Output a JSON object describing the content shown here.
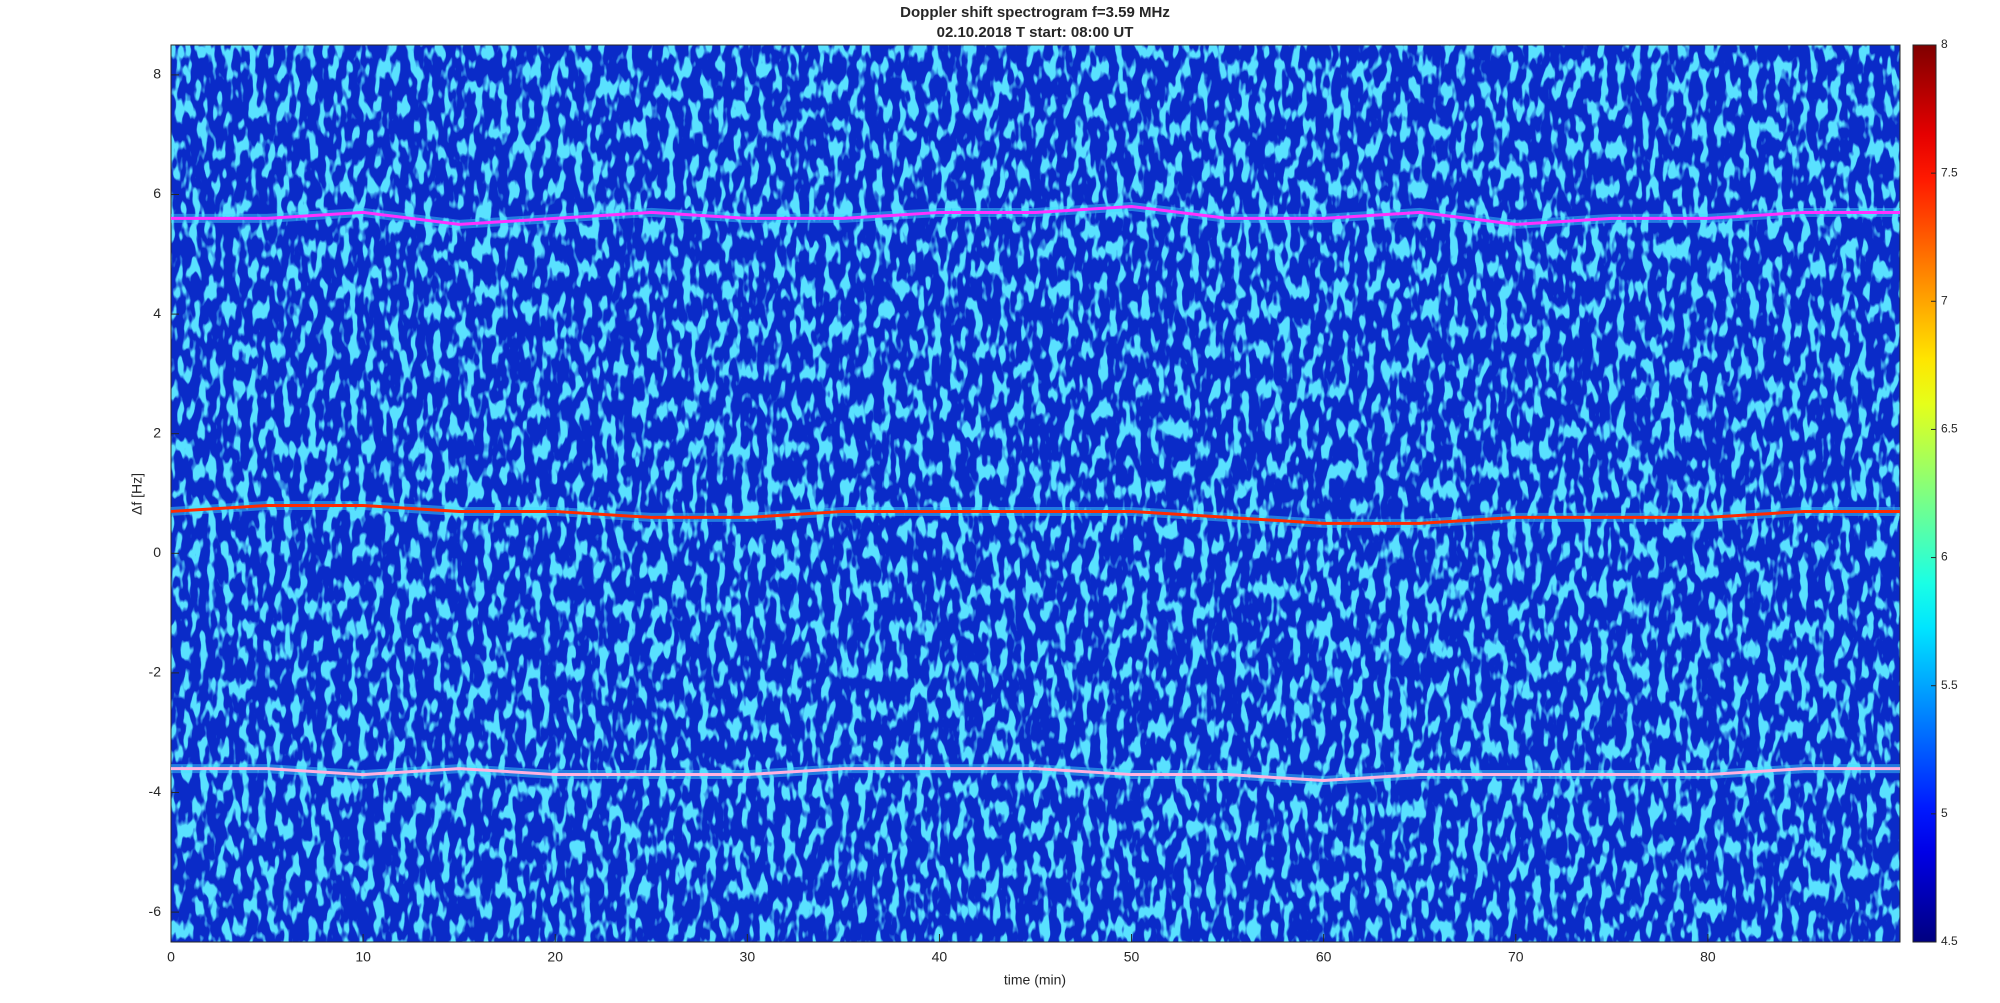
{
  "chart_data": {
    "type": "spectrogram",
    "title": "Doppler shift spectrogram f=3.59 MHz",
    "subtitle": "02.10.2018   T start: 08:00 UT",
    "x_label": "time (min)",
    "y_label": "Δf [Hz]",
    "xlim": [
      0,
      90
    ],
    "xticks": [
      0,
      10,
      20,
      30,
      40,
      50,
      60,
      70,
      80
    ],
    "ylim": [
      -6.5,
      8.5
    ],
    "yticks": [
      -6,
      -4,
      -2,
      0,
      2,
      4,
      6,
      8
    ],
    "colormap": "jet",
    "clim": [
      4.5,
      8
    ],
    "cticks": [
      4.5,
      5,
      5.5,
      6,
      6.5,
      7,
      7.5,
      8
    ],
    "x": [
      0,
      5,
      10,
      15,
      20,
      25,
      30,
      35,
      40,
      45,
      50,
      55,
      60,
      65,
      70,
      75,
      80,
      85,
      90
    ],
    "series": [
      {
        "color": "#ff30ff",
        "values": [
          5.6,
          5.6,
          5.7,
          5.5,
          5.6,
          5.7,
          5.6,
          5.6,
          5.7,
          5.7,
          5.8,
          5.6,
          5.6,
          5.7,
          5.5,
          5.6,
          5.6,
          5.7,
          5.7
        ]
      },
      {
        "color": "#ff2a00",
        "values": [
          0.7,
          0.8,
          0.8,
          0.7,
          0.7,
          0.6,
          0.6,
          0.7,
          0.7,
          0.7,
          0.7,
          0.6,
          0.5,
          0.5,
          0.6,
          0.6,
          0.6,
          0.7,
          0.7
        ]
      },
      {
        "color": "#ffb0e0",
        "values": [
          -3.6,
          -3.6,
          -3.7,
          -3.6,
          -3.7,
          -3.7,
          -3.7,
          -3.6,
          -3.6,
          -3.6,
          -3.7,
          -3.7,
          -3.8,
          -3.7,
          -3.7,
          -3.7,
          -3.7,
          -3.6,
          -3.6
        ]
      }
    ]
  }
}
